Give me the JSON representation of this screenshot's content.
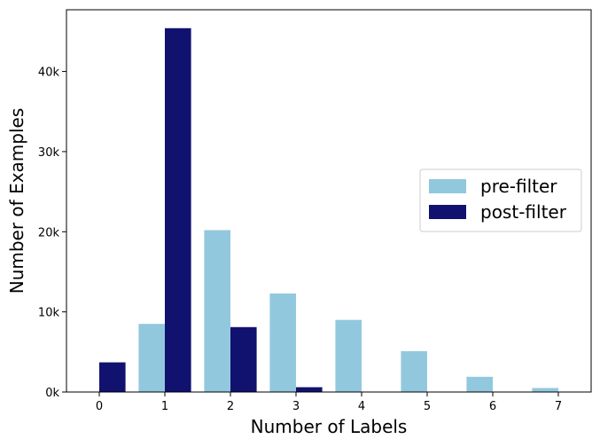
{
  "chart_data": {
    "type": "bar",
    "title": "",
    "xlabel": "Number of Labels",
    "ylabel": "Number of Examples",
    "categories": [
      "0",
      "1",
      "2",
      "3",
      "4",
      "5",
      "6",
      "7"
    ],
    "series": [
      {
        "name": "pre-filter",
        "color": "#92C8DE",
        "values": [
          0,
          8500,
          20200,
          12300,
          9000,
          5100,
          1900,
          500
        ]
      },
      {
        "name": "post-filter",
        "color": "#111170",
        "values": [
          3700,
          45400,
          8100,
          600,
          0,
          0,
          0,
          0
        ]
      }
    ],
    "xlim": [
      -0.5,
      7.5
    ],
    "ylim": [
      0,
      47700
    ],
    "yticks": [
      {
        "value": 0,
        "label": "0k"
      },
      {
        "value": 10000,
        "label": "10k"
      },
      {
        "value": 20000,
        "label": "20k"
      },
      {
        "value": 30000,
        "label": "30k"
      },
      {
        "value": 40000,
        "label": "40k"
      }
    ],
    "grid": false,
    "legend_position": "right"
  }
}
